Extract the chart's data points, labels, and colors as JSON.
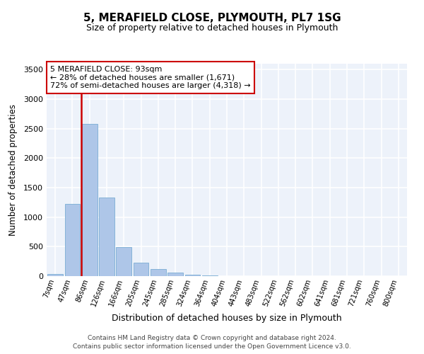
{
  "title": "5, MERAFIELD CLOSE, PLYMOUTH, PL7 1SG",
  "subtitle": "Size of property relative to detached houses in Plymouth",
  "xlabel": "Distribution of detached houses by size in Plymouth",
  "ylabel": "Number of detached properties",
  "bar_color": "#aec6e8",
  "bar_edge_color": "#7aadd4",
  "background_color": "#edf2fa",
  "grid_color": "#ffffff",
  "categories": [
    "7sqm",
    "47sqm",
    "86sqm",
    "126sqm",
    "166sqm",
    "205sqm",
    "245sqm",
    "285sqm",
    "324sqm",
    "364sqm",
    "404sqm",
    "443sqm",
    "483sqm",
    "522sqm",
    "562sqm",
    "602sqm",
    "641sqm",
    "681sqm",
    "721sqm",
    "760sqm",
    "800sqm"
  ],
  "values": [
    40,
    1230,
    2580,
    1330,
    490,
    225,
    115,
    55,
    30,
    15,
    5,
    2,
    1,
    0,
    0,
    0,
    0,
    0,
    0,
    0,
    0
  ],
  "ylim": [
    0,
    3600
  ],
  "yticks": [
    0,
    500,
    1000,
    1500,
    2000,
    2500,
    3000,
    3500
  ],
  "property_line_color": "#cc0000",
  "annotation_text": "5 MERAFIELD CLOSE: 93sqm\n← 28% of detached houses are smaller (1,671)\n72% of semi-detached houses are larger (4,318) →",
  "annotation_box_color": "#ffffff",
  "annotation_box_edge_color": "#cc0000",
  "footer_line1": "Contains HM Land Registry data © Crown copyright and database right 2024.",
  "footer_line2": "Contains public sector information licensed under the Open Government Licence v3.0."
}
